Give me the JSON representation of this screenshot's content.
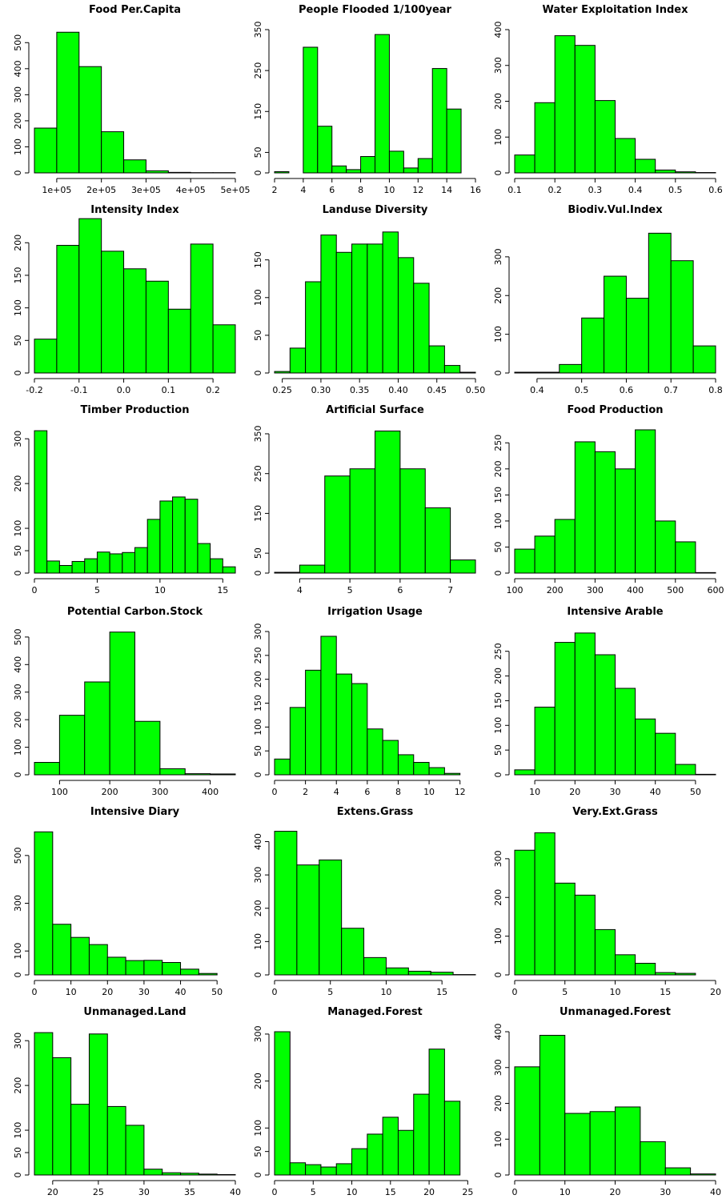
{
  "chart_data": [
    {
      "type": "bar",
      "title": "Food Per.Capita",
      "breaks": [
        50000,
        100000,
        150000,
        200000,
        250000,
        300000,
        350000,
        400000,
        450000,
        500000
      ],
      "values": [
        172,
        540,
        408,
        158,
        50,
        8,
        2,
        1,
        1
      ],
      "xlim": [
        50000,
        500000
      ],
      "ylim": [
        0,
        550
      ],
      "xticks": [
        {
          "v": 100000,
          "l": "1e+05"
        },
        {
          "v": 200000,
          "l": "2e+05"
        },
        {
          "v": 300000,
          "l": "3e+05"
        },
        {
          "v": 400000,
          "l": "4e+05"
        },
        {
          "v": 500000,
          "l": "5e+05"
        }
      ],
      "yticks": [
        0,
        100,
        200,
        300,
        400,
        500
      ]
    },
    {
      "type": "bar",
      "title": "People Flooded 1/100year",
      "breaks": [
        2,
        3,
        4,
        5,
        6,
        7,
        8,
        9,
        10,
        11,
        12,
        13,
        14,
        15,
        16
      ],
      "values": [
        3,
        0,
        307,
        114,
        17,
        8,
        40,
        338,
        53,
        12,
        35,
        255,
        156,
        0
      ],
      "xlim": [
        2,
        16
      ],
      "ylim": [
        0,
        350
      ],
      "xticks": [
        {
          "v": 2,
          "l": "2"
        },
        {
          "v": 4,
          "l": "4"
        },
        {
          "v": 6,
          "l": "6"
        },
        {
          "v": 8,
          "l": "8"
        },
        {
          "v": 10,
          "l": "10"
        },
        {
          "v": 12,
          "l": "12"
        },
        {
          "v": 14,
          "l": "14"
        },
        {
          "v": 16,
          "l": "16"
        }
      ],
      "yticks": [
        0,
        50,
        150,
        250,
        350
      ]
    },
    {
      "type": "bar",
      "title": "Water Exploitation Index",
      "breaks": [
        0.1,
        0.15,
        0.2,
        0.25,
        0.3,
        0.35,
        0.4,
        0.45,
        0.5,
        0.55,
        0.6
      ],
      "values": [
        50,
        196,
        383,
        356,
        202,
        96,
        38,
        8,
        3,
        1
      ],
      "xlim": [
        0.1,
        0.6
      ],
      "ylim": [
        0,
        400
      ],
      "xticks": [
        {
          "v": 0.1,
          "l": "0.1"
        },
        {
          "v": 0.2,
          "l": "0.2"
        },
        {
          "v": 0.3,
          "l": "0.3"
        },
        {
          "v": 0.4,
          "l": "0.4"
        },
        {
          "v": 0.5,
          "l": "0.5"
        },
        {
          "v": 0.6,
          "l": "0.6"
        }
      ],
      "yticks": [
        0,
        100,
        200,
        300,
        400
      ]
    },
    {
      "type": "bar",
      "title": "Intensity Index",
      "breaks": [
        -0.2,
        -0.15,
        -0.1,
        -0.05,
        0,
        0.05,
        0.1,
        0.15,
        0.2,
        0.25
      ],
      "values": [
        52,
        196,
        237,
        187,
        160,
        141,
        98,
        198,
        74
      ],
      "xlim": [
        -0.2,
        0.25
      ],
      "ylim": [
        0,
        220
      ],
      "xticks": [
        {
          "v": -0.2,
          "l": "-0.2"
        },
        {
          "v": -0.1,
          "l": "-0.1"
        },
        {
          "v": 0,
          "l": "0.0"
        },
        {
          "v": 0.1,
          "l": "0.1"
        },
        {
          "v": 0.2,
          "l": "0.2"
        }
      ],
      "yticks": [
        0,
        50,
        100,
        150,
        200
      ]
    },
    {
      "type": "bar",
      "title": "Landuse Diversity",
      "breaks": [
        0.24,
        0.26,
        0.28,
        0.3,
        0.32,
        0.34,
        0.36,
        0.38,
        0.4,
        0.42,
        0.44,
        0.46,
        0.48,
        0.5
      ],
      "values": [
        2,
        33,
        121,
        183,
        160,
        171,
        171,
        187,
        153,
        119,
        36,
        10,
        1
      ],
      "xlim": [
        0.24,
        0.5
      ],
      "ylim": [
        0,
        190
      ],
      "xticks": [
        {
          "v": 0.25,
          "l": "0.25"
        },
        {
          "v": 0.3,
          "l": "0.30"
        },
        {
          "v": 0.35,
          "l": "0.35"
        },
        {
          "v": 0.4,
          "l": "0.40"
        },
        {
          "v": 0.45,
          "l": "0.45"
        },
        {
          "v": 0.5,
          "l": "0.50"
        }
      ],
      "yticks": [
        0,
        50,
        100,
        150
      ]
    },
    {
      "type": "bar",
      "title": "Biodiv.Vul.Index",
      "breaks": [
        0.35,
        0.4,
        0.45,
        0.5,
        0.55,
        0.6,
        0.65,
        0.7,
        0.75,
        0.8
      ],
      "values": [
        2,
        2,
        22,
        142,
        250,
        193,
        361,
        290,
        70
      ],
      "xlim": [
        0.35,
        0.8
      ],
      "ylim": [
        0,
        370
      ],
      "xticks": [
        {
          "v": 0.4,
          "l": "0.4"
        },
        {
          "v": 0.5,
          "l": "0.5"
        },
        {
          "v": 0.6,
          "l": "0.6"
        },
        {
          "v": 0.7,
          "l": "0.7"
        },
        {
          "v": 0.8,
          "l": "0.8"
        }
      ],
      "yticks": [
        0,
        100,
        200,
        300
      ]
    },
    {
      "type": "bar",
      "title": "Timber Production",
      "breaks": [
        0,
        1,
        2,
        3,
        4,
        5,
        6,
        7,
        8,
        9,
        10,
        11,
        12,
        13,
        14,
        15,
        16
      ],
      "values": [
        318,
        27,
        17,
        26,
        32,
        47,
        43,
        46,
        57,
        120,
        161,
        170,
        165,
        66,
        32,
        14
      ],
      "xlim": [
        0,
        16
      ],
      "ylim": [
        0,
        320
      ],
      "xticks": [
        {
          "v": 0,
          "l": "0"
        },
        {
          "v": 5,
          "l": "5"
        },
        {
          "v": 10,
          "l": "10"
        },
        {
          "v": 15,
          "l": "15"
        }
      ],
      "yticks": [
        0,
        50,
        100,
        200,
        300
      ]
    },
    {
      "type": "bar",
      "title": "Artificial Surface",
      "breaks": [
        3.5,
        4,
        4.5,
        5,
        5.5,
        6,
        6.5,
        7,
        7.5
      ],
      "values": [
        2,
        20,
        244,
        262,
        357,
        262,
        164,
        33
      ],
      "xlim": [
        3.5,
        7.5
      ],
      "ylim": [
        0,
        360
      ],
      "xticks": [
        {
          "v": 4,
          "l": "4"
        },
        {
          "v": 5,
          "l": "5"
        },
        {
          "v": 6,
          "l": "6"
        },
        {
          "v": 7,
          "l": "7"
        }
      ],
      "yticks": [
        0,
        50,
        150,
        250,
        350
      ]
    },
    {
      "type": "bar",
      "title": "Food Production",
      "breaks": [
        100,
        150,
        200,
        250,
        300,
        350,
        400,
        450,
        500,
        550,
        600
      ],
      "values": [
        46,
        71,
        103,
        252,
        233,
        200,
        275,
        100,
        60,
        1
      ],
      "xlim": [
        100,
        600
      ],
      "ylim": [
        0,
        275
      ],
      "xticks": [
        {
          "v": 100,
          "l": "100"
        },
        {
          "v": 200,
          "l": "200"
        },
        {
          "v": 300,
          "l": "300"
        },
        {
          "v": 400,
          "l": "400"
        },
        {
          "v": 500,
          "l": "500"
        },
        {
          "v": 600,
          "l": "600"
        }
      ],
      "yticks": [
        0,
        50,
        100,
        150,
        200,
        250
      ]
    },
    {
      "type": "bar",
      "title": "Potential Carbon.Stock",
      "breaks": [
        50,
        100,
        150,
        200,
        250,
        300,
        350,
        400,
        450
      ],
      "values": [
        45,
        216,
        337,
        518,
        194,
        22,
        4,
        3
      ],
      "xlim": [
        50,
        450
      ],
      "ylim": [
        0,
        520
      ],
      "xticks": [
        {
          "v": 100,
          "l": "100"
        },
        {
          "v": 200,
          "l": "200"
        },
        {
          "v": 300,
          "l": "300"
        },
        {
          "v": 400,
          "l": "400"
        }
      ],
      "yticks": [
        0,
        100,
        200,
        300,
        400,
        500
      ]
    },
    {
      "type": "bar",
      "title": "Irrigation Usage",
      "breaks": [
        0,
        1,
        2,
        3,
        4,
        5,
        6,
        7,
        8,
        9,
        10,
        11,
        12,
        13
      ],
      "values": [
        33,
        141,
        219,
        290,
        211,
        191,
        96,
        72,
        42,
        26,
        15,
        3,
        0
      ],
      "xlim": [
        0,
        13
      ],
      "ylim": [
        0,
        300
      ],
      "xticks": [
        {
          "v": 0,
          "l": "0"
        },
        {
          "v": 2,
          "l": "2"
        },
        {
          "v": 4,
          "l": "4"
        },
        {
          "v": 6,
          "l": "6"
        },
        {
          "v": 8,
          "l": "8"
        },
        {
          "v": 10,
          "l": "10"
        },
        {
          "v": 12,
          "l": "12"
        }
      ],
      "yticks": [
        0,
        50,
        100,
        150,
        200,
        250,
        300
      ]
    },
    {
      "type": "bar",
      "title": "Intensive Arable",
      "breaks": [
        5,
        10,
        15,
        20,
        25,
        30,
        35,
        40,
        45,
        50,
        55
      ],
      "values": [
        10,
        137,
        268,
        287,
        243,
        175,
        113,
        84,
        21,
        1
      ],
      "xlim": [
        5,
        55
      ],
      "ylim": [
        0,
        290
      ],
      "xticks": [
        {
          "v": 10,
          "l": "10"
        },
        {
          "v": 20,
          "l": "20"
        },
        {
          "v": 30,
          "l": "30"
        },
        {
          "v": 40,
          "l": "40"
        },
        {
          "v": 50,
          "l": "50"
        }
      ],
      "yticks": [
        0,
        50,
        100,
        150,
        200,
        250
      ]
    },
    {
      "type": "bar",
      "title": "Intensive Diary",
      "breaks": [
        0,
        5,
        10,
        15,
        20,
        25,
        30,
        35,
        40,
        45,
        50
      ],
      "values": [
        599,
        212,
        157,
        127,
        74,
        60,
        61,
        52,
        24,
        6
      ],
      "xlim": [
        0,
        55
      ],
      "ylim": [
        0,
        600
      ],
      "xticks": [
        {
          "v": 0,
          "l": "0"
        },
        {
          "v": 10,
          "l": "10"
        },
        {
          "v": 20,
          "l": "20"
        },
        {
          "v": 30,
          "l": "30"
        },
        {
          "v": 40,
          "l": "40"
        },
        {
          "v": 50,
          "l": "50"
        }
      ],
      "yticks": [
        0,
        100,
        300,
        500
      ]
    },
    {
      "type": "bar",
      "title": "Extens.Grass",
      "breaks": [
        0,
        2,
        4,
        6,
        8,
        10,
        12,
        14,
        16,
        18
      ],
      "values": [
        431,
        330,
        345,
        140,
        52,
        21,
        11,
        8,
        1
      ],
      "xlim": [
        0,
        18
      ],
      "ylim": [
        0,
        430
      ],
      "xticks": [
        {
          "v": 0,
          "l": "0"
        },
        {
          "v": 5,
          "l": "5"
        },
        {
          "v": 10,
          "l": "10"
        },
        {
          "v": 15,
          "l": "15"
        }
      ],
      "yticks": [
        0,
        100,
        200,
        300,
        400
      ]
    },
    {
      "type": "bar",
      "title": "Very.Ext.Grass",
      "breaks": [
        0,
        2,
        4,
        6,
        8,
        10,
        12,
        14,
        16,
        18,
        20
      ],
      "values": [
        322,
        367,
        237,
        206,
        117,
        52,
        30,
        6,
        4,
        0
      ],
      "xlim": [
        0,
        20
      ],
      "ylim": [
        0,
        370
      ],
      "xticks": [
        {
          "v": 0,
          "l": "0"
        },
        {
          "v": 5,
          "l": "5"
        },
        {
          "v": 10,
          "l": "10"
        },
        {
          "v": 15,
          "l": "15"
        },
        {
          "v": 20,
          "l": "20"
        }
      ],
      "yticks": [
        0,
        100,
        200,
        300
      ]
    },
    {
      "type": "bar",
      "title": "Unmanaged.Land",
      "breaks": [
        18,
        20,
        22,
        24,
        26,
        28,
        30,
        32,
        34,
        36,
        38,
        40
      ],
      "values": [
        318,
        262,
        158,
        315,
        153,
        111,
        13,
        5,
        4,
        2,
        1
      ],
      "xlim": [
        18,
        40
      ],
      "ylim": [
        0,
        320
      ],
      "xticks": [
        {
          "v": 20,
          "l": "20"
        },
        {
          "v": 25,
          "l": "25"
        },
        {
          "v": 30,
          "l": "30"
        },
        {
          "v": 35,
          "l": "35"
        },
        {
          "v": 40,
          "l": "40"
        }
      ],
      "yticks": [
        0,
        50,
        100,
        200,
        300
      ]
    },
    {
      "type": "bar",
      "title": "Managed.Forest",
      "breaks": [
        0,
        2,
        4,
        6,
        8,
        10,
        12,
        14,
        16,
        18,
        20,
        22,
        24,
        26
      ],
      "values": [
        305,
        26,
        22,
        17,
        24,
        56,
        87,
        123,
        95,
        172,
        268,
        157,
        0
      ],
      "xlim": [
        0,
        26
      ],
      "ylim": [
        0,
        305
      ],
      "xticks": [
        {
          "v": 0,
          "l": "0"
        },
        {
          "v": 5,
          "l": "5"
        },
        {
          "v": 10,
          "l": "10"
        },
        {
          "v": 15,
          "l": "15"
        },
        {
          "v": 20,
          "l": "20"
        },
        {
          "v": 25,
          "l": "25"
        }
      ],
      "yticks": [
        0,
        50,
        100,
        200,
        300
      ]
    },
    {
      "type": "bar",
      "title": "Unmanaged.Forest",
      "breaks": [
        0,
        5,
        10,
        15,
        20,
        25,
        30,
        35,
        40
      ],
      "values": [
        302,
        390,
        172,
        177,
        190,
        93,
        20,
        3
      ],
      "xlim": [
        0,
        40
      ],
      "ylim": [
        0,
        400
      ],
      "xticks": [
        {
          "v": 0,
          "l": "0"
        },
        {
          "v": 10,
          "l": "10"
        },
        {
          "v": 20,
          "l": "20"
        },
        {
          "v": 30,
          "l": "30"
        },
        {
          "v": 40,
          "l": "40"
        }
      ],
      "yticks": [
        0,
        100,
        200,
        300,
        400
      ]
    }
  ]
}
